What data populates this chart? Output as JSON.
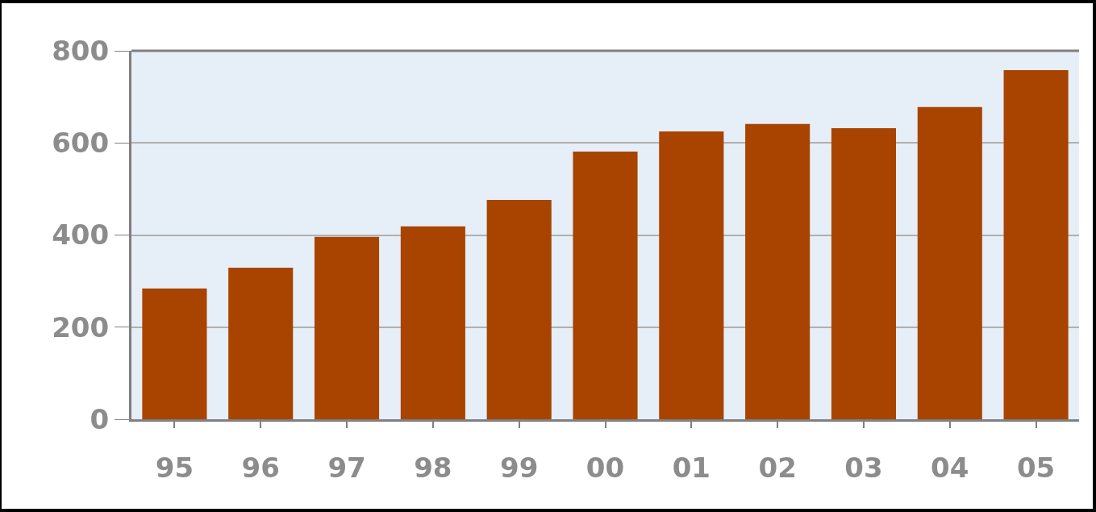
{
  "chart_data": {
    "type": "bar",
    "categories": [
      "95",
      "96",
      "97",
      "98",
      "99",
      "00",
      "01",
      "02",
      "03",
      "04",
      "05"
    ],
    "values": [
      284,
      329,
      396,
      419,
      476,
      581,
      625,
      641,
      632,
      678,
      758
    ],
    "color": "#a84400",
    "ylim": [
      0,
      800
    ],
    "yticks": [
      0,
      200,
      400,
      600,
      800
    ],
    "grid": "y"
  }
}
